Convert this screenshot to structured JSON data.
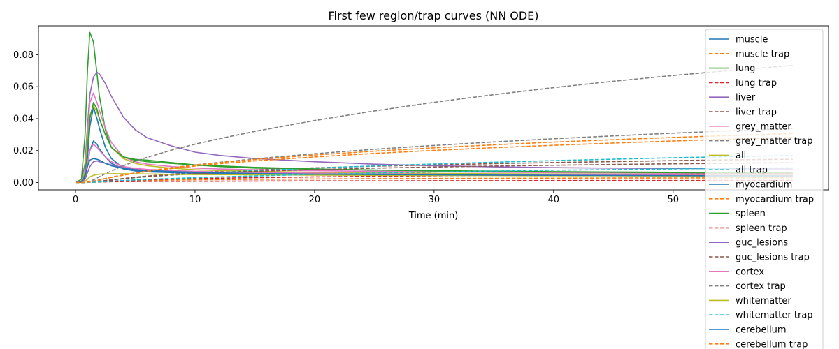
{
  "chart_data": {
    "type": "line",
    "title": "First few region/trap curves (NN ODE)",
    "xlabel": "Time (min)",
    "ylabel": "",
    "xlim": [
      -3.1,
      63.0
    ],
    "ylim": [
      -0.0046,
      0.0981
    ],
    "xticks": [
      0,
      10,
      20,
      30,
      40,
      50
    ],
    "yticks": [
      0.0,
      0.02,
      0.04,
      0.06,
      0.08
    ],
    "ytick_labels": [
      "0.00",
      "0.02",
      "0.04",
      "0.06",
      "0.08"
    ],
    "grid": false,
    "legend_position": "right",
    "x": [
      0,
      0.5,
      0.8,
      1.0,
      1.2,
      1.5,
      1.8,
      2.0,
      2.5,
      3,
      4,
      5,
      6,
      8,
      10,
      12,
      15,
      20,
      25,
      30,
      35,
      40,
      45,
      50,
      55,
      60
    ],
    "series": [
      {
        "name": "muscle",
        "color": "#1f77b4",
        "dash": false,
        "values": [
          0,
          0.0003,
          0.004,
          0.015,
          0.035,
          0.047,
          0.04,
          0.034,
          0.022,
          0.015,
          0.009,
          0.0075,
          0.007,
          0.0065,
          0.006,
          0.0058,
          0.0055,
          0.005,
          0.0048,
          0.0046,
          0.0045,
          0.0044,
          0.0043,
          0.0042,
          0.0041,
          0.004
        ]
      },
      {
        "name": "muscle trap",
        "color": "#ff7f0e",
        "dash": true,
        "values": [
          0,
          0,
          0,
          0.0001,
          0.0002,
          0.0003,
          0.0004,
          0.0005,
          0.0007,
          0.0008,
          0.001,
          0.0012,
          0.0013,
          0.0015,
          0.0017,
          0.0018,
          0.002,
          0.0022,
          0.0024,
          0.0025,
          0.0026,
          0.0027,
          0.0028,
          0.0028,
          0.0029,
          0.003
        ]
      },
      {
        "name": "lung",
        "color": "#2ca02c",
        "dash": false,
        "values": [
          0,
          0.002,
          0.03,
          0.07,
          0.094,
          0.088,
          0.068,
          0.054,
          0.033,
          0.022,
          0.016,
          0.0145,
          0.014,
          0.0125,
          0.011,
          0.01,
          0.009,
          0.0083,
          0.0078,
          0.0074,
          0.0071,
          0.0068,
          0.0066,
          0.0064,
          0.0062,
          0.006
        ]
      },
      {
        "name": "lung trap",
        "color": "#d62728",
        "dash": true,
        "values": [
          0,
          0,
          0,
          0.0001,
          0.0001,
          0.0002,
          0.0003,
          0.0003,
          0.0004,
          0.0005,
          0.0006,
          0.0006,
          0.0007,
          0.0007,
          0.0008,
          0.0008,
          0.0009,
          0.001,
          0.001,
          0.0011,
          0.0011,
          0.0012,
          0.0012,
          0.0012,
          0.0013,
          0.0013
        ]
      },
      {
        "name": "liver",
        "color": "#9467bd",
        "dash": false,
        "values": [
          0,
          0.0008,
          0.012,
          0.035,
          0.055,
          0.066,
          0.069,
          0.068,
          0.062,
          0.054,
          0.041,
          0.033,
          0.028,
          0.023,
          0.019,
          0.017,
          0.015,
          0.013,
          0.0115,
          0.0105,
          0.0098,
          0.0093,
          0.009,
          0.0088,
          0.0086,
          0.0085
        ]
      },
      {
        "name": "liver trap",
        "color": "#8c564b",
        "dash": true,
        "values": [
          0,
          0,
          0,
          0.0001,
          0.0002,
          0.0004,
          0.0006,
          0.0008,
          0.0012,
          0.0016,
          0.0025,
          0.0033,
          0.004,
          0.0052,
          0.0062,
          0.007,
          0.008,
          0.0092,
          0.0102,
          0.011,
          0.0118,
          0.0125,
          0.0131,
          0.0137,
          0.0142,
          0.0146
        ]
      },
      {
        "name": "grey_matter",
        "color": "#e377c2",
        "dash": false,
        "values": [
          0,
          0.0005,
          0.008,
          0.03,
          0.05,
          0.056,
          0.05,
          0.045,
          0.034,
          0.025,
          0.016,
          0.013,
          0.0115,
          0.01,
          0.009,
          0.0085,
          0.008,
          0.0074,
          0.007,
          0.0067,
          0.0064,
          0.0062,
          0.006,
          0.0058,
          0.0057,
          0.0055
        ]
      },
      {
        "name": "grey_matter trap",
        "color": "#7f7f7f",
        "dash": true,
        "values": [
          0,
          0,
          0.0001,
          0.0002,
          0.0004,
          0.0008,
          0.0013,
          0.0017,
          0.0025,
          0.0033,
          0.0048,
          0.006,
          0.0072,
          0.0092,
          0.011,
          0.0126,
          0.0148,
          0.018,
          0.0208,
          0.0232,
          0.0254,
          0.0274,
          0.0292,
          0.0309,
          0.0324,
          0.0338
        ]
      },
      {
        "name": "all",
        "color": "#bcbd22",
        "dash": false,
        "values": [
          0,
          0.0004,
          0.007,
          0.025,
          0.042,
          0.048,
          0.044,
          0.04,
          0.03,
          0.022,
          0.015,
          0.012,
          0.0105,
          0.009,
          0.008,
          0.0075,
          0.007,
          0.0064,
          0.006,
          0.0057,
          0.0055,
          0.0053,
          0.0052,
          0.0051,
          0.005,
          0.0049
        ]
      },
      {
        "name": "all trap",
        "color": "#17becf",
        "dash": true,
        "values": [
          0,
          0,
          0,
          0.0001,
          0.0002,
          0.0004,
          0.0006,
          0.0008,
          0.0012,
          0.0016,
          0.0023,
          0.003,
          0.0036,
          0.0046,
          0.0055,
          0.0063,
          0.0074,
          0.009,
          0.0104,
          0.0116,
          0.0127,
          0.0137,
          0.0146,
          0.0155,
          0.0162,
          0.0169
        ]
      },
      {
        "name": "myocardium",
        "color": "#1f77b4",
        "dash": false,
        "values": [
          0,
          0.0002,
          0.003,
          0.01,
          0.02,
          0.026,
          0.024,
          0.021,
          0.016,
          0.012,
          0.0085,
          0.0072,
          0.0067,
          0.0062,
          0.0058,
          0.0056,
          0.0053,
          0.005,
          0.0048,
          0.0046,
          0.0045,
          0.0044,
          0.0043,
          0.0042,
          0.0041,
          0.004
        ]
      },
      {
        "name": "myocardium trap",
        "color": "#ff7f0e",
        "dash": true,
        "values": [
          0,
          0,
          0.0001,
          0.0002,
          0.0004,
          0.0008,
          0.0012,
          0.0016,
          0.0024,
          0.0032,
          0.0046,
          0.0058,
          0.0069,
          0.0087,
          0.0103,
          0.0117,
          0.0135,
          0.016,
          0.0182,
          0.0201,
          0.0218,
          0.0233,
          0.0247,
          0.026,
          0.0272,
          0.0283
        ]
      },
      {
        "name": "spleen",
        "color": "#2ca02c",
        "dash": false,
        "values": [
          0,
          0.0004,
          0.005,
          0.02,
          0.04,
          0.05,
          0.046,
          0.04,
          0.03,
          0.022,
          0.016,
          0.014,
          0.013,
          0.012,
          0.011,
          0.0104,
          0.0095,
          0.0085,
          0.0078,
          0.0073,
          0.0069,
          0.0066,
          0.0064,
          0.0062,
          0.006,
          0.0059
        ]
      },
      {
        "name": "spleen trap",
        "color": "#d62728",
        "dash": true,
        "values": [
          0,
          0,
          0,
          0.0001,
          0.0002,
          0.0003,
          0.0004,
          0.0005,
          0.0007,
          0.0009,
          0.0012,
          0.0015,
          0.0017,
          0.0021,
          0.0024,
          0.0027,
          0.003,
          0.0035,
          0.0039,
          0.0042,
          0.0045,
          0.0047,
          0.0049,
          0.0051,
          0.0053,
          0.0055
        ]
      },
      {
        "name": "guc_lesions",
        "color": "#9467bd",
        "dash": false,
        "values": [
          0,
          0.0002,
          0.002,
          0.006,
          0.01,
          0.013,
          0.0135,
          0.013,
          0.012,
          0.011,
          0.0095,
          0.0085,
          0.008,
          0.0072,
          0.0067,
          0.0063,
          0.0059,
          0.0055,
          0.0052,
          0.005,
          0.0048,
          0.0047,
          0.0046,
          0.0045,
          0.0044,
          0.0043
        ]
      },
      {
        "name": "guc_lesions trap",
        "color": "#8c564b",
        "dash": true,
        "values": [
          0,
          0,
          0,
          0.0001,
          0.0002,
          0.0004,
          0.0006,
          0.0008,
          0.0012,
          0.0016,
          0.0024,
          0.0031,
          0.0037,
          0.0047,
          0.0055,
          0.0062,
          0.007,
          0.0081,
          0.009,
          0.0097,
          0.0103,
          0.0108,
          0.0113,
          0.0117,
          0.0121,
          0.0124
        ]
      },
      {
        "name": "cortex",
        "color": "#e377c2",
        "dash": false,
        "values": [
          0,
          0.0003,
          0.004,
          0.012,
          0.02,
          0.024,
          0.022,
          0.02,
          0.016,
          0.013,
          0.01,
          0.0088,
          0.0082,
          0.0075,
          0.007,
          0.0066,
          0.0062,
          0.0058,
          0.0055,
          0.0052,
          0.005,
          0.0048,
          0.0047,
          0.0046,
          0.0045,
          0.0044
        ]
      },
      {
        "name": "cortex trap",
        "color": "#7f7f7f",
        "dash": true,
        "values": [
          0,
          0,
          0.0001,
          0.0003,
          0.0008,
          0.0016,
          0.0028,
          0.0036,
          0.0055,
          0.0072,
          0.0105,
          0.0133,
          0.0158,
          0.0202,
          0.024,
          0.0274,
          0.032,
          0.0388,
          0.0448,
          0.0502,
          0.055,
          0.0594,
          0.0634,
          0.067,
          0.0703,
          0.0733
        ]
      },
      {
        "name": "whitematter",
        "color": "#bcbd22",
        "dash": false,
        "values": [
          0,
          0.0001,
          0.0008,
          0.002,
          0.0035,
          0.0045,
          0.005,
          0.0052,
          0.0054,
          0.0055,
          0.0055,
          0.0054,
          0.0053,
          0.0051,
          0.005,
          0.0049,
          0.0048,
          0.0046,
          0.0045,
          0.0044,
          0.0043,
          0.0042,
          0.0042,
          0.0041,
          0.0041,
          0.004
        ]
      },
      {
        "name": "whitematter trap",
        "color": "#17becf",
        "dash": true,
        "values": [
          0,
          0,
          0,
          0.0001,
          0.0001,
          0.0002,
          0.0003,
          0.0004,
          0.0006,
          0.0008,
          0.0012,
          0.0016,
          0.0019,
          0.0025,
          0.003,
          0.0035,
          0.0041,
          0.0051,
          0.0059,
          0.0066,
          0.0072,
          0.0077,
          0.0081,
          0.0085,
          0.0089,
          0.0092
        ]
      },
      {
        "name": "cerebellum",
        "color": "#1f77b4",
        "dash": false,
        "values": [
          0,
          0.0003,
          0.004,
          0.01,
          0.014,
          0.015,
          0.0145,
          0.014,
          0.012,
          0.0105,
          0.0088,
          0.008,
          0.0075,
          0.0069,
          0.0064,
          0.006,
          0.0056,
          0.0052,
          0.005,
          0.0048,
          0.0046,
          0.0045,
          0.0044,
          0.0043,
          0.0042,
          0.0041
        ]
      },
      {
        "name": "cerebellum trap",
        "color": "#ff7f0e",
        "dash": true,
        "values": [
          0,
          0,
          0.0001,
          0.0002,
          0.0004,
          0.0008,
          0.0012,
          0.0016,
          0.0024,
          0.0032,
          0.0047,
          0.006,
          0.0072,
          0.0092,
          0.0109,
          0.0124,
          0.0144,
          0.0172,
          0.0196,
          0.0217,
          0.0236,
          0.0253,
          0.0268,
          0.0282,
          0.0295,
          0.0307
        ]
      }
    ]
  }
}
